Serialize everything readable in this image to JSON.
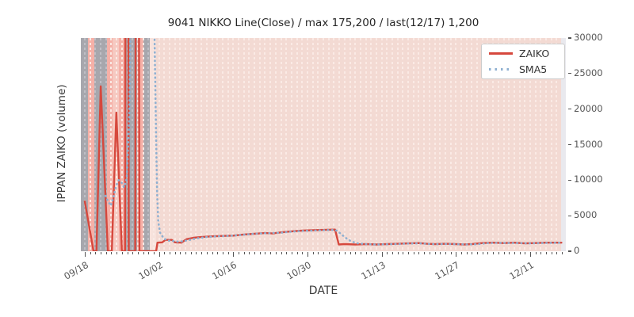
{
  "chart_data": {
    "type": "line",
    "title": "9041 NIKKO Line(Close) / max 175,200 / last(12/17) 1,200",
    "xlabel": "DATE",
    "ylabel": "IPPAN ZAIKO (volume)",
    "ylim": [
      0,
      30000
    ],
    "yticks": [
      0,
      5000,
      10000,
      15000,
      20000,
      25000,
      30000
    ],
    "xticks": [
      {
        "label": "09/18",
        "day": 0
      },
      {
        "label": "10/02",
        "day": 14
      },
      {
        "label": "10/16",
        "day": 28
      },
      {
        "label": "10/30",
        "day": 42
      },
      {
        "label": "11/13",
        "day": 56
      },
      {
        "label": "11/27",
        "day": 70
      },
      {
        "label": "12/11",
        "day": 84
      }
    ],
    "grid": "vertical-dashed-daily",
    "legend_position": "upper right",
    "legend": [
      {
        "name": "ZAIKO",
        "style": "solid"
      },
      {
        "name": "SMA5",
        "style": "dotted"
      }
    ],
    "colors": {
      "zaiko_line": "#d6483d",
      "sma5_line": "#8fb0d1",
      "band_gray": "#a7a7ad",
      "band_salmon": "#f5b0a7",
      "band_medium": "#f6c9c1",
      "band_pale": "#f7e2dc",
      "band_base": "#f3dad3",
      "axes_bg": "#e9e9ee",
      "grid_on_pink": "#faeae5",
      "grid_on_gray": "#bfbfc6"
    },
    "bands": [
      {
        "from": -0.75,
        "to": 0.6,
        "type": "gray"
      },
      {
        "from": 0.6,
        "to": 1.79,
        "type": "salmon"
      },
      {
        "from": 1.79,
        "to": 4.19,
        "type": "gray"
      },
      {
        "from": 4.19,
        "to": 5.28,
        "type": "salmon"
      },
      {
        "from": 5.28,
        "to": 6.43,
        "type": "medium"
      },
      {
        "from": 6.43,
        "to": 7.52,
        "type": "salmon"
      },
      {
        "from": 7.52,
        "to": 9.91,
        "type": "gray"
      },
      {
        "from": 9.91,
        "to": 11.06,
        "type": "salmon"
      },
      {
        "from": 11.06,
        "to": 12.26,
        "type": "gray"
      },
      {
        "from": 12.26,
        "to": 13.41,
        "type": "pale"
      },
      {
        "from": 13.41,
        "to": 89.85,
        "type": "base"
      }
    ],
    "series": [
      {
        "name": "ZAIKO",
        "points": [
          [
            0,
            7000
          ],
          [
            1.64,
            0
          ],
          [
            2.2,
            0
          ],
          [
            3,
            23200
          ],
          [
            4.35,
            0
          ],
          [
            5.1,
            0
          ],
          [
            5.95,
            19500
          ],
          [
            7,
            0
          ],
          [
            7.6,
            0
          ],
          [
            7.92,
            175200
          ],
          [
            8.3,
            0
          ],
          [
            9.5,
            0
          ],
          [
            9.87,
            175200
          ],
          [
            10.3,
            0
          ],
          [
            11,
            0
          ],
          [
            13.45,
            0
          ],
          [
            13.7,
            1200
          ],
          [
            14.6,
            1250
          ],
          [
            15.2,
            1600
          ],
          [
            16.4,
            1600
          ],
          [
            17,
            1250
          ],
          [
            18.2,
            1200
          ],
          [
            19.2,
            1700
          ],
          [
            20.5,
            1900
          ],
          [
            22,
            2000
          ],
          [
            24,
            2100
          ],
          [
            26,
            2150
          ],
          [
            28,
            2200
          ],
          [
            30,
            2350
          ],
          [
            32,
            2450
          ],
          [
            34,
            2550
          ],
          [
            35.5,
            2500
          ],
          [
            37,
            2650
          ],
          [
            39,
            2800
          ],
          [
            41,
            2900
          ],
          [
            43,
            2950
          ],
          [
            45,
            3000
          ],
          [
            47.2,
            3050
          ],
          [
            47.9,
            950
          ],
          [
            49,
            1000
          ],
          [
            51,
            950
          ],
          [
            53,
            1000
          ],
          [
            55,
            950
          ],
          [
            57,
            1000
          ],
          [
            59,
            1050
          ],
          [
            61,
            1100
          ],
          [
            63,
            1150
          ],
          [
            64.5,
            1050
          ],
          [
            66,
            1000
          ],
          [
            68,
            1050
          ],
          [
            70,
            1000
          ],
          [
            71.5,
            950
          ],
          [
            73,
            1000
          ],
          [
            75,
            1150
          ],
          [
            77,
            1200
          ],
          [
            79,
            1150
          ],
          [
            81,
            1200
          ],
          [
            83,
            1100
          ],
          [
            85,
            1150
          ],
          [
            87,
            1200
          ],
          [
            89,
            1200
          ],
          [
            89.9,
            1200
          ]
        ]
      },
      {
        "name": "SMA5",
        "points": [
          [
            3.9,
            7800
          ],
          [
            4.4,
            7000
          ],
          [
            4.9,
            6400
          ],
          [
            5.4,
            7600
          ],
          [
            5.9,
            9200
          ],
          [
            6.4,
            10000
          ],
          [
            6.9,
            9700
          ],
          [
            7.4,
            9000
          ],
          [
            7.9,
            10200
          ],
          [
            8.4,
            19000
          ],
          [
            8.7,
            36000
          ],
          [
            13.0,
            36000
          ],
          [
            13.2,
            28000
          ],
          [
            13.35,
            21000
          ],
          [
            13.5,
            14000
          ],
          [
            13.65,
            8000
          ],
          [
            13.85,
            4200
          ],
          [
            14.2,
            2600
          ],
          [
            14.9,
            1800
          ],
          [
            15.6,
            1500
          ],
          [
            16.5,
            1450
          ],
          [
            17.5,
            1350
          ],
          [
            18.5,
            1400
          ],
          [
            19.5,
            1550
          ],
          [
            21,
            1800
          ],
          [
            23,
            2000
          ],
          [
            25,
            2100
          ],
          [
            27,
            2150
          ],
          [
            29,
            2250
          ],
          [
            31,
            2400
          ],
          [
            33,
            2500
          ],
          [
            35,
            2550
          ],
          [
            37,
            2600
          ],
          [
            39,
            2750
          ],
          [
            41,
            2850
          ],
          [
            43,
            2900
          ],
          [
            45,
            2950
          ],
          [
            47,
            3000
          ],
          [
            47.5,
            2900
          ],
          [
            48.3,
            2450
          ],
          [
            49,
            2000
          ],
          [
            49.7,
            1630
          ],
          [
            50.4,
            1340
          ],
          [
            51.5,
            1100
          ],
          [
            53,
            1000
          ],
          [
            55,
            950
          ],
          [
            57,
            980
          ],
          [
            59,
            1020
          ],
          [
            61,
            1080
          ],
          [
            63,
            1120
          ],
          [
            64.5,
            1040
          ],
          [
            66,
            990
          ],
          [
            68,
            1030
          ],
          [
            70,
            990
          ],
          [
            72,
            960
          ],
          [
            74,
            990
          ],
          [
            76,
            1140
          ],
          [
            78,
            1180
          ],
          [
            80,
            1160
          ],
          [
            82,
            1150
          ],
          [
            84,
            1100
          ],
          [
            86,
            1150
          ],
          [
            88,
            1180
          ],
          [
            89.9,
            1190
          ]
        ]
      }
    ]
  }
}
